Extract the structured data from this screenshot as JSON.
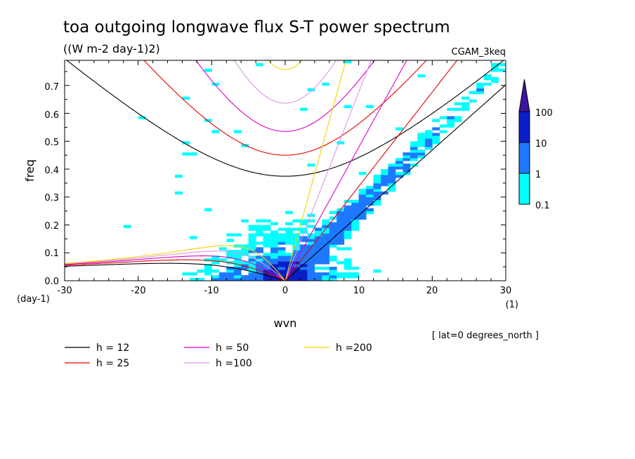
{
  "chart_data": {
    "type": "heatmap",
    "title": "toa outgoing longwave flux S-T power spectrum",
    "subtitle": "((W m-2 day-1)2)",
    "dataset": "CGAM_3keq",
    "xlabel": "wvn",
    "xunits": "(1)",
    "ylabel": "freq",
    "yunits": "(day-1)",
    "xlim": [
      -30,
      30
    ],
    "ylim": [
      0,
      0.79
    ],
    "x_ticks": [
      "-30",
      "-20",
      "-10",
      "0",
      "10",
      "20",
      "30"
    ],
    "x_tick_values": [
      -30,
      -20,
      -10,
      0,
      10,
      20,
      30
    ],
    "y_ticks": [
      "0.0",
      "0.1",
      "0.2",
      "0.3",
      "0.4",
      "0.5",
      "0.6",
      "0.7"
    ],
    "y_tick_values": [
      0,
      0.1,
      0.2,
      0.3,
      0.4,
      0.5,
      0.6,
      0.7
    ],
    "annotation": "[ lat=0 degrees_north ]",
    "colorbar": {
      "levels": [
        "0.1",
        "1",
        "10",
        "100"
      ],
      "colors": [
        "#00ffff",
        "#1e78ff",
        "#0a1ec8",
        "#3c14a0"
      ]
    },
    "series": [
      {
        "name": "h = 12",
        "h": 12,
        "color": "#000000"
      },
      {
        "name": "h = 25",
        "h": 25,
        "color": "#e60000"
      },
      {
        "name": "h = 50",
        "h": 50,
        "color": "#dc00c8"
      },
      {
        "name": "h =100",
        "h": 100,
        "color": "#dc96e6"
      },
      {
        "name": "h =200",
        "h": 200,
        "color": "#f0d200"
      }
    ]
  }
}
